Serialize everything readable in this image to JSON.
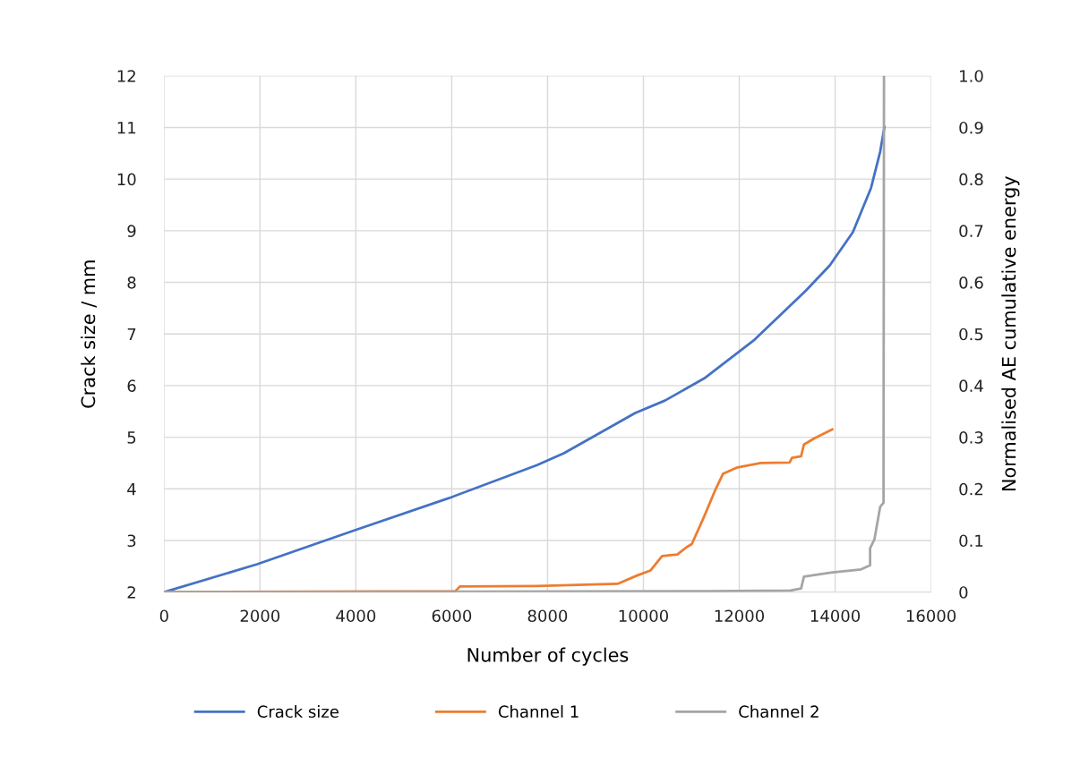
{
  "chart_data": {
    "type": "line",
    "xlabel": "Number of cycles",
    "ylabel": "Crack size / mm",
    "y2label": "Normalised AE cumulative energy",
    "xlim": [
      0,
      16000
    ],
    "xticks": [
      0,
      2000,
      4000,
      6000,
      8000,
      10000,
      12000,
      14000,
      16000
    ],
    "ylim": [
      2,
      12
    ],
    "yticks": [
      2,
      3,
      4,
      5,
      6,
      7,
      8,
      9,
      10,
      11,
      12
    ],
    "y2lim": [
      0,
      1.0
    ],
    "y2ticks": [
      {
        "value": 0,
        "label": "0"
      },
      {
        "value": 0.1,
        "label": "0.1"
      },
      {
        "value": 0.2,
        "label": "0.2"
      },
      {
        "value": 0.3,
        "label": "0.3"
      },
      {
        "value": 0.4,
        "label": "0.4"
      },
      {
        "value": 0.5,
        "label": "0.5"
      },
      {
        "value": 0.6,
        "label": "0.6"
      },
      {
        "value": 0.7,
        "label": "0.7"
      },
      {
        "value": 0.8,
        "label": "0.8"
      },
      {
        "value": 0.9,
        "label": "0.9"
      },
      {
        "value": 1.0,
        "label": "1.0"
      }
    ],
    "grid": true,
    "legend": "bottom",
    "marker": "none",
    "line_style": "solid",
    "series": [
      {
        "name": "Crack size",
        "color": "#4472c4",
        "x": [
          0,
          1940,
          3980,
          5940,
          7780,
          8340,
          9830,
          10450,
          11270,
          12320,
          13390,
          13890,
          14370,
          14750,
          14940,
          15030
        ],
        "values": [
          2.0,
          2.54,
          3.2,
          3.82,
          4.46,
          4.69,
          5.47,
          5.71,
          6.14,
          6.89,
          7.84,
          8.33,
          8.97,
          9.83,
          10.53,
          11.01
        ]
      },
      {
        "name": "Channel 1",
        "color": "#ed7d31",
        "axis": "y2",
        "x": [
          0,
          6080,
          6170,
          7780,
          9460,
          9890,
          10150,
          10390,
          10710,
          10900,
          11010,
          11270,
          11510,
          11660,
          11940,
          12450,
          13050,
          13100,
          13290,
          13350,
          13570,
          13940
        ],
        "values": [
          0,
          0.002,
          0.011,
          0.012,
          0.016,
          0.033,
          0.042,
          0.07,
          0.073,
          0.087,
          0.093,
          0.147,
          0.2,
          0.229,
          0.241,
          0.25,
          0.251,
          0.26,
          0.263,
          0.286,
          0.298,
          0.315
        ]
      },
      {
        "name": "Channel 2",
        "color": "#a5a5a5",
        "axis": "y2",
        "x": [
          0,
          11300,
          13070,
          13290,
          13350,
          13910,
          14540,
          14730,
          14730,
          14820,
          14940,
          15010,
          15020
        ],
        "values": [
          0,
          0.002,
          0.003,
          0.007,
          0.03,
          0.038,
          0.044,
          0.052,
          0.085,
          0.102,
          0.165,
          0.173,
          1.0
        ]
      }
    ]
  }
}
